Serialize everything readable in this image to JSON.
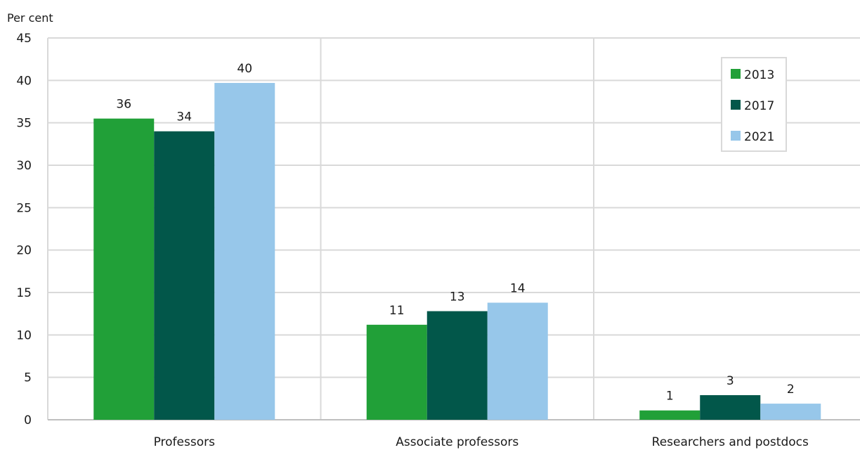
{
  "chart_data": {
    "type": "bar",
    "unit_label": "Per cent",
    "categories": [
      "Professors",
      "Associate professors",
      "Researchers and postdocs"
    ],
    "series": [
      {
        "name": "2013",
        "color": "#21a038",
        "values": [
          35.5,
          11.2,
          1.1
        ],
        "labels": [
          "36",
          "11",
          "1"
        ]
      },
      {
        "name": "2017",
        "color": "#02574a",
        "values": [
          34.0,
          12.8,
          2.9
        ],
        "labels": [
          "34",
          "13",
          "3"
        ]
      },
      {
        "name": "2021",
        "color": "#97c7ea",
        "values": [
          39.7,
          13.8,
          1.9
        ],
        "labels": [
          "40",
          "14",
          "2"
        ]
      }
    ],
    "y_ticks": [
      "0",
      "5",
      "10",
      "15",
      "20",
      "25",
      "30",
      "35",
      "40",
      "45"
    ],
    "ylim": [
      0,
      45
    ],
    "grid": true,
    "legend_position": "top-right"
  }
}
